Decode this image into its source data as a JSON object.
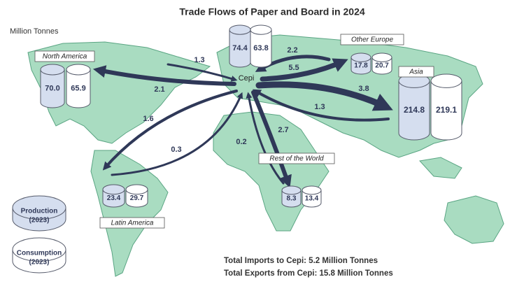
{
  "title": "Trade Flows of Paper and Board in 2024",
  "unit": "Million Tonnes",
  "regions": [
    {
      "name": "Cepi",
      "production": "74.4",
      "consumption": "63.8"
    },
    {
      "name": "North America",
      "production": "70.0",
      "consumption": "65.9"
    },
    {
      "name": "Other Europe",
      "production": "17.8",
      "consumption": "20.7"
    },
    {
      "name": "Asia",
      "production": "214.8",
      "consumption": "219.1"
    },
    {
      "name": "Rest of the World",
      "production": "8.3",
      "consumption": "13.4"
    },
    {
      "name": "Latin America",
      "production": "23.4",
      "consumption": "29.7"
    }
  ],
  "flows": [
    "1.3",
    "2.1",
    "2.2",
    "5.5",
    "3.8",
    "1.3",
    "1.6",
    "0.3",
    "0.2",
    "2.7"
  ],
  "legend": {
    "production": {
      "label": "Production",
      "year": "(2023)"
    },
    "consumption": {
      "label": "Consumption",
      "year": "(2023)"
    }
  },
  "totals": [
    "Total Imports to Cepi: 5.2 Million Tonnes",
    "Total Exports from Cepi: 15.8 Million Tonnes"
  ]
}
